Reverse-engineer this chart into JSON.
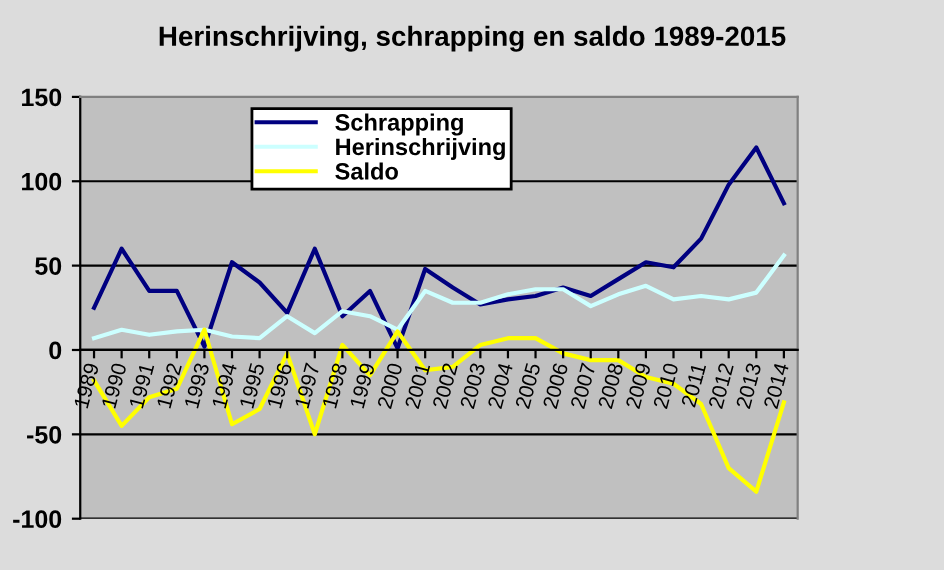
{
  "chart_data": {
    "type": "line",
    "title": "Herinschrijving, schrapping en saldo 1989-2015",
    "categories": [
      "1989",
      "1990",
      "1991",
      "1992",
      "1993",
      "1994",
      "1995",
      "1996",
      "1997",
      "1998",
      "1999",
      "2000",
      "2001",
      "2002",
      "2003",
      "2004",
      "2005",
      "2006",
      "2007",
      "2008",
      "2009",
      "2010",
      "2011",
      "2012",
      "2013",
      "2014"
    ],
    "series": [
      {
        "name": "Schrapping",
        "color": "#000080",
        "values": [
          25,
          60,
          35,
          35,
          2,
          52,
          40,
          22,
          60,
          20,
          35,
          1,
          48,
          37,
          27,
          30,
          32,
          37,
          32,
          42,
          52,
          49,
          66,
          98,
          120,
          87
        ]
      },
      {
        "name": "Herinschrijving",
        "color": "#ccffff",
        "values": [
          7,
          12,
          9,
          11,
          12,
          8,
          7,
          20,
          10,
          23,
          20,
          12,
          35,
          28,
          28,
          33,
          36,
          36,
          26,
          33,
          38,
          30,
          32,
          30,
          34,
          56
        ]
      },
      {
        "name": "Saldo",
        "color": "#ffff00",
        "values": [
          -18,
          -45,
          -28,
          -23,
          12,
          -44,
          -35,
          -2,
          -50,
          3,
          -15,
          11,
          -12,
          -10,
          3,
          7,
          7,
          -2,
          -6,
          -6,
          -16,
          -20,
          -32,
          -70,
          -84,
          -31
        ]
      }
    ],
    "ylim": [
      -100,
      150
    ],
    "yticks": [
      -100,
      -50,
      0,
      50,
      100,
      150
    ],
    "grid": "y",
    "legend": "top",
    "marker": "none",
    "line_style": "solid"
  }
}
